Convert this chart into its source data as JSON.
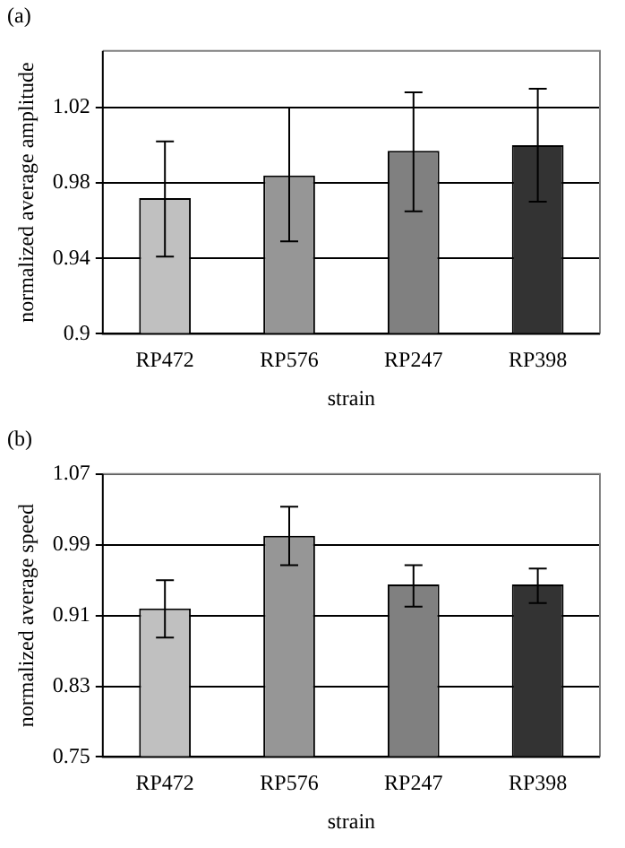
{
  "chart_data": [
    {
      "type": "bar",
      "title": "(a)",
      "xlabel": "strain",
      "ylabel": "normalized average amplitude",
      "categories": [
        "RP472",
        "RP576",
        "RP247",
        "RP398"
      ],
      "values": [
        0.972,
        0.984,
        0.997,
        1.0
      ],
      "colors": [
        "#c0c0c0",
        "#969696",
        "#808080",
        "#333333"
      ],
      "errors": [
        [
          0.941,
          1.002
        ],
        [
          0.949,
          1.02
        ],
        [
          0.965,
          1.028
        ],
        [
          0.97,
          1.03
        ]
      ],
      "ylim": [
        0.9,
        1.05
      ],
      "yticks": [
        0.9,
        0.94,
        0.98,
        1.02
      ],
      "grid": "y",
      "legend": false
    },
    {
      "type": "bar",
      "title": "(b)",
      "xlabel": "strain",
      "ylabel": "normalized average speed",
      "categories": [
        "RP472",
        "RP576",
        "RP247",
        "RP398"
      ],
      "values": [
        0.918,
        1.0,
        0.945,
        0.945
      ],
      "colors": [
        "#c0c0c0",
        "#969696",
        "#808080",
        "#333333"
      ],
      "errors": [
        [
          0.885,
          0.95
        ],
        [
          0.967,
          1.033
        ],
        [
          0.92,
          0.967
        ],
        [
          0.924,
          0.963
        ]
      ],
      "ylim": [
        0.75,
        1.07
      ],
      "yticks": [
        0.75,
        0.83,
        0.91,
        0.99,
        1.07
      ],
      "grid": "y",
      "legend": false
    }
  ]
}
